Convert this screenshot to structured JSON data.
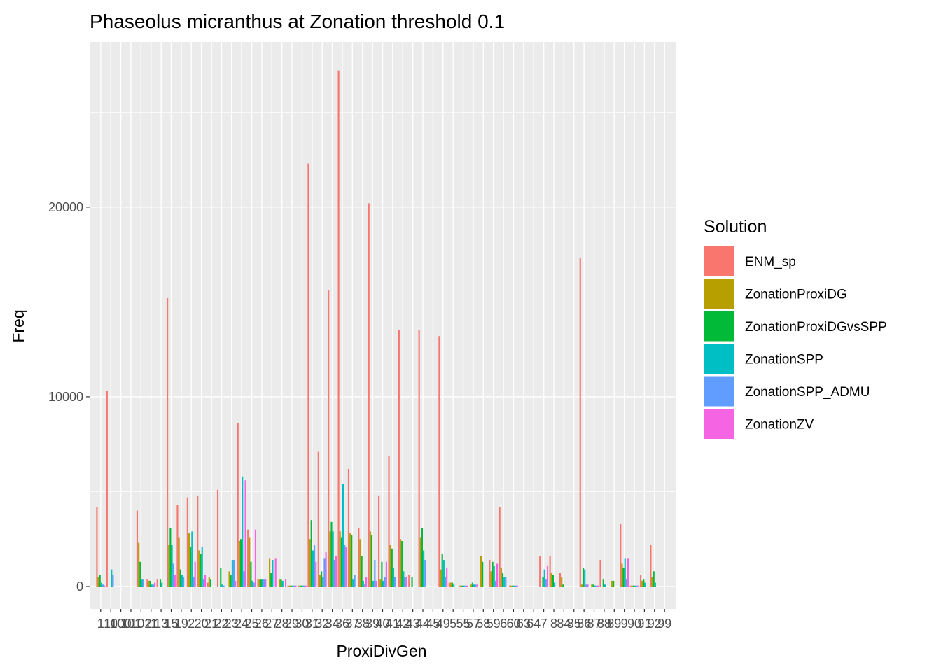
{
  "chart_data": {
    "type": "bar",
    "title": "Phaseolus micranthus at Zonation threshold 0.1",
    "x_label": "ProxiDivGen",
    "y_label": "Freq",
    "legend_title": "Solution",
    "categories": [
      "1",
      "10",
      "100",
      "101",
      "102",
      "11",
      "13",
      "15",
      "19",
      "2",
      "20",
      "21",
      "22",
      "23",
      "24",
      "25",
      "26",
      "27",
      "28",
      "29",
      "30",
      "31",
      "32",
      "34",
      "36",
      "37",
      "38",
      "39",
      "40",
      "41",
      "42",
      "43",
      "44",
      "45",
      "49",
      "5",
      "55",
      "57",
      "58",
      "59",
      "6",
      "60",
      "63",
      "64",
      "7",
      "8",
      "84",
      "85",
      "86",
      "87",
      "88",
      "89",
      "9",
      "90",
      "91",
      "92",
      "99"
    ],
    "series": [
      {
        "name": "ENM_sp",
        "color": "#F8766D",
        "values": [
          4200,
          10300,
          0,
          0,
          4000,
          400,
          400,
          15200,
          4300,
          4700,
          4800,
          200,
          5100,
          0,
          8600,
          3000,
          400,
          0,
          0,
          50,
          50,
          22300,
          7100,
          15600,
          27200,
          6200,
          3100,
          20200,
          4800,
          6900,
          13500,
          600,
          13500,
          0,
          13200,
          200,
          50,
          0,
          0,
          1400,
          4200,
          50,
          0,
          0,
          1600,
          1600,
          700,
          0,
          17300,
          0,
          1400,
          0,
          3300,
          50,
          600,
          2200,
          0
        ]
      },
      {
        "name": "ZonationProxiDG",
        "color": "#B79F00",
        "values": [
          500,
          0,
          0,
          0,
          2300,
          300,
          0,
          2200,
          2600,
          2800,
          1900,
          500,
          0,
          800,
          2400,
          2600,
          400,
          1500,
          400,
          50,
          50,
          2500,
          600,
          2900,
          2900,
          2800,
          2500,
          2900,
          400,
          2200,
          2500,
          0,
          2600,
          0,
          900,
          200,
          50,
          100,
          1600,
          800,
          1000,
          50,
          0,
          0,
          0,
          700,
          500,
          0,
          100,
          100,
          0,
          300,
          1200,
          50,
          300,
          500,
          0
        ]
      },
      {
        "name": "ZonationProxiDGvsSPP",
        "color": "#00BA38",
        "values": [
          600,
          0,
          0,
          0,
          1300,
          300,
          400,
          3100,
          900,
          2100,
          1700,
          400,
          1000,
          600,
          2500,
          1300,
          400,
          700,
          400,
          50,
          50,
          3500,
          800,
          3400,
          2600,
          2700,
          1600,
          2700,
          1300,
          2000,
          2400,
          500,
          3100,
          0,
          1700,
          200,
          50,
          200,
          1300,
          1300,
          700,
          50,
          0,
          0,
          500,
          600,
          100,
          0,
          1000,
          100,
          400,
          300,
          1000,
          50,
          400,
          800,
          0
        ]
      },
      {
        "name": "ZonationSPP",
        "color": "#00BFC4",
        "values": [
          200,
          900,
          0,
          0,
          400,
          100,
          200,
          2200,
          600,
          2900,
          2100,
          0,
          100,
          1400,
          5800,
          300,
          400,
          1400,
          300,
          50,
          50,
          1900,
          500,
          2900,
          5400,
          400,
          300,
          300,
          300,
          1000,
          800,
          0,
          1900,
          0,
          1400,
          100,
          50,
          100,
          0,
          1100,
          500,
          50,
          0,
          0,
          900,
          200,
          0,
          0,
          900,
          50,
          100,
          0,
          1500,
          50,
          200,
          200,
          0
        ]
      },
      {
        "name": "ZonationSPP_ADMU",
        "color": "#619CFF",
        "values": [
          100,
          600,
          0,
          0,
          400,
          100,
          0,
          1200,
          500,
          500,
          400,
          0,
          50,
          1400,
          800,
          200,
          400,
          0,
          0,
          50,
          50,
          2200,
          1500,
          1400,
          2200,
          600,
          100,
          1400,
          500,
          500,
          500,
          0,
          1400,
          0,
          500,
          0,
          50,
          100,
          0,
          300,
          500,
          50,
          0,
          0,
          400,
          0,
          0,
          0,
          100,
          50,
          0,
          0,
          400,
          50,
          0,
          0,
          0
        ]
      },
      {
        "name": "ZonationZV",
        "color": "#F564E3",
        "values": [
          50,
          0,
          0,
          0,
          0,
          200,
          0,
          600,
          0,
          1300,
          600,
          0,
          0,
          300,
          5600,
          3000,
          400,
          1500,
          400,
          50,
          50,
          1300,
          1800,
          1600,
          2100,
          0,
          500,
          300,
          1300,
          0,
          500,
          0,
          0,
          0,
          1000,
          0,
          50,
          100,
          0,
          1200,
          0,
          50,
          0,
          0,
          1100,
          0,
          0,
          0,
          100,
          50,
          0,
          0,
          1500,
          50,
          0,
          0,
          0
        ]
      }
    ],
    "ylim": [
      -1180,
      28700
    ],
    "yticks": [
      0,
      10000,
      20000
    ],
    "grid": true,
    "legend": "right"
  }
}
